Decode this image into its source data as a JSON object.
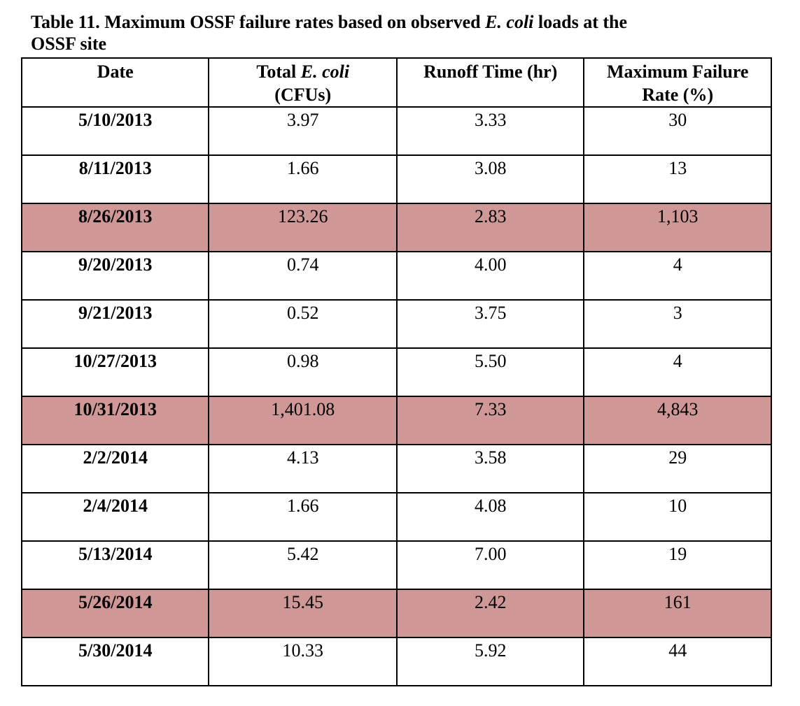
{
  "caption": {
    "prefix": "Table 11. Maximum OSSF failure rates based on observed ",
    "italic": "E. coli",
    "suffix_line1": " loads at the",
    "line2": "OSSF site"
  },
  "headers": {
    "date": "Date",
    "ecoli_prefix": "Total ",
    "ecoli_italic": "E. coli",
    "ecoli_unit": "(CFUs)",
    "runoff": "Runoff Time (hr)",
    "failure_line1": "Maximum Failure",
    "failure_line2": "Rate (%)"
  },
  "rows": [
    {
      "date": "5/10/2013",
      "ecoli": "3.97",
      "runoff": "3.33",
      "failure": "30",
      "highlight": false
    },
    {
      "date": "8/11/2013",
      "ecoli": "1.66",
      "runoff": "3.08",
      "failure": "13",
      "highlight": false
    },
    {
      "date": "8/26/2013",
      "ecoli": "123.26",
      "runoff": "2.83",
      "failure": "1,103",
      "highlight": true
    },
    {
      "date": "9/20/2013",
      "ecoli": "0.74",
      "runoff": "4.00",
      "failure": "4",
      "highlight": false
    },
    {
      "date": "9/21/2013",
      "ecoli": "0.52",
      "runoff": "3.75",
      "failure": "3",
      "highlight": false
    },
    {
      "date": "10/27/2013",
      "ecoli": "0.98",
      "runoff": "5.50",
      "failure": "4",
      "highlight": false
    },
    {
      "date": "10/31/2013",
      "ecoli": "1,401.08",
      "runoff": "7.33",
      "failure": "4,843",
      "highlight": true
    },
    {
      "date": "2/2/2014",
      "ecoli": "4.13",
      "runoff": "3.58",
      "failure": "29",
      "highlight": false
    },
    {
      "date": "2/4/2014",
      "ecoli": "1.66",
      "runoff": "4.08",
      "failure": "10",
      "highlight": false
    },
    {
      "date": "5/13/2014",
      "ecoli": "5.42",
      "runoff": "7.00",
      "failure": "19",
      "highlight": false
    },
    {
      "date": "5/26/2014",
      "ecoli": "15.45",
      "runoff": "2.42",
      "failure": "161",
      "highlight": true
    },
    {
      "date": "5/30/2014",
      "ecoli": "10.33",
      "runoff": "5.92",
      "failure": "44",
      "highlight": false
    }
  ],
  "colors": {
    "highlight_row": "#cf9796",
    "border": "#000000"
  }
}
